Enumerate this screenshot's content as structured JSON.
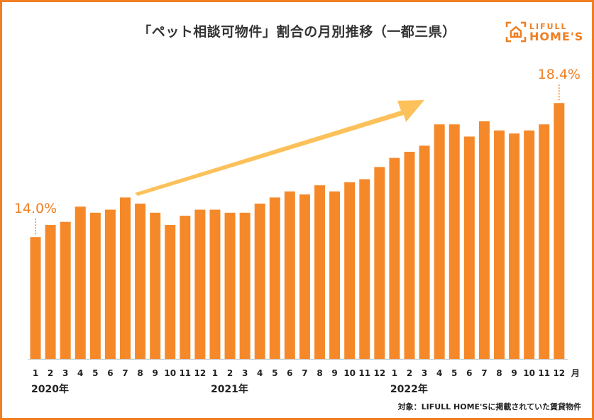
{
  "title": "「ペット相談可物件」割合の月別推移（一都三県）",
  "logo": {
    "line1": "LIFULL",
    "line2": "HOME'S"
  },
  "footnote": "対象：LIFULL HOME'Sに掲載されていた賃貸物件",
  "colors": {
    "bar": "#f5892a",
    "arrow": "#fcc15a",
    "accent": "#f07f22",
    "frame": "#f07f22"
  },
  "chart_data": {
    "type": "bar",
    "title": "「ペット相談可物件」割合の月別推移（一都三県）",
    "xlabel": "月",
    "ylabel": "",
    "ylim": [
      10,
      18.8
    ],
    "grid": false,
    "categories": [
      "1",
      "2",
      "3",
      "4",
      "5",
      "6",
      "7",
      "8",
      "9",
      "10",
      "11",
      "12",
      "1",
      "2",
      "3",
      "4",
      "5",
      "6",
      "7",
      "8",
      "9",
      "10",
      "11",
      "12",
      "1",
      "2",
      "3",
      "4",
      "5",
      "6",
      "7",
      "8",
      "9",
      "10",
      "11",
      "12"
    ],
    "years": [
      {
        "label": "2020年",
        "start": 0
      },
      {
        "label": "2021年",
        "start": 12
      },
      {
        "label": "2022年",
        "start": 24
      }
    ],
    "values": [
      14.0,
      14.4,
      14.5,
      15.0,
      14.8,
      14.9,
      15.3,
      15.1,
      14.8,
      14.4,
      14.7,
      14.9,
      14.9,
      14.8,
      14.8,
      15.1,
      15.3,
      15.5,
      15.4,
      15.7,
      15.5,
      15.8,
      15.9,
      16.3,
      16.6,
      16.8,
      17.0,
      17.7,
      17.7,
      17.3,
      17.8,
      17.5,
      17.4,
      17.5,
      17.7,
      18.4
    ],
    "data_labels": [
      {
        "index": 0,
        "text": "14.0%"
      },
      {
        "index": 35,
        "text": "18.4%"
      }
    ],
    "unit_label": "月"
  }
}
